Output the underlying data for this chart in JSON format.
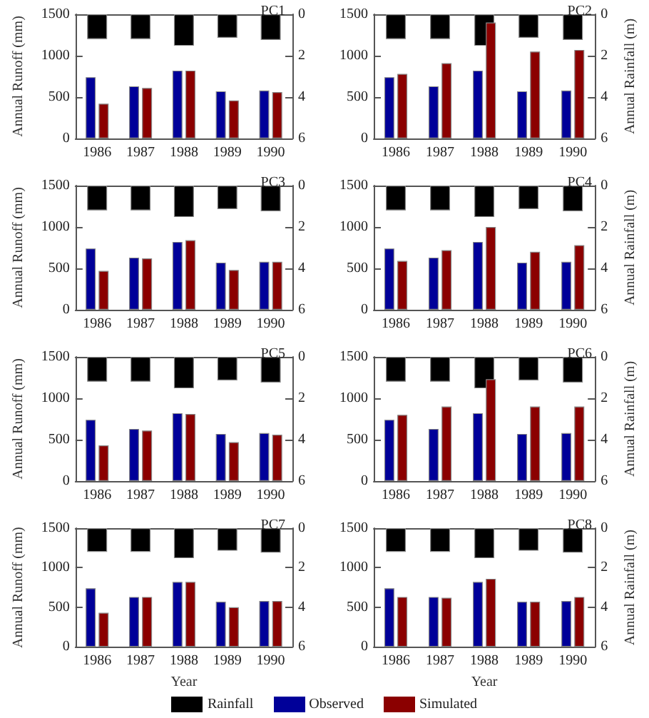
{
  "chart_data": [
    {
      "type": "bar",
      "title": "PC1",
      "ylabel": "Annual Runoff (mm)",
      "legend": "bottom",
      "categories": [
        "1986",
        "1987",
        "1988",
        "1989",
        "1990"
      ],
      "series": [
        {
          "name": "Rainfall",
          "color": "#000000",
          "axis": "y2",
          "values": [
            1.2,
            1.2,
            1.52,
            1.14,
            1.24
          ]
        },
        {
          "name": "Observed",
          "color": "#000099",
          "values": [
            740,
            630,
            820,
            570,
            580
          ]
        },
        {
          "name": "Simulated",
          "color": "#8b0000",
          "values": [
            420,
            610,
            820,
            460,
            560
          ]
        }
      ],
      "ylim": [
        0,
        1500
      ],
      "yticks": [
        0,
        500,
        1000,
        1500
      ],
      "y2lim": [
        6,
        0
      ],
      "y2ticks": [
        0,
        2,
        4,
        6
      ]
    },
    {
      "type": "bar",
      "title": "PC2",
      "y2label": "Annual Rainfall (m)",
      "categories": [
        "1986",
        "1987",
        "1988",
        "1989",
        "1990"
      ],
      "series": [
        {
          "color": "#000000",
          "axis": "y2",
          "values": [
            1.2,
            1.2,
            1.52,
            1.14,
            1.24
          ]
        },
        {
          "color": "#000099",
          "values": [
            740,
            630,
            820,
            570,
            580
          ]
        },
        {
          "color": "#8b0000",
          "values": [
            780,
            910,
            1400,
            1050,
            1070
          ]
        }
      ],
      "ylim": [
        0,
        1500
      ],
      "yticks": [
        0,
        500,
        1000,
        1500
      ],
      "y2lim": [
        6,
        0
      ],
      "y2ticks": [
        0,
        2,
        4,
        6
      ]
    },
    {
      "type": "bar",
      "title": "PC3",
      "ylabel": "Annual Runoff (mm)",
      "categories": [
        "1986",
        "1987",
        "1988",
        "1989",
        "1990"
      ],
      "series": [
        {
          "color": "#000000",
          "axis": "y2",
          "values": [
            1.2,
            1.2,
            1.52,
            1.14,
            1.24
          ]
        },
        {
          "color": "#000099",
          "values": [
            740,
            630,
            820,
            570,
            580
          ]
        },
        {
          "color": "#8b0000",
          "values": [
            470,
            620,
            840,
            480,
            580
          ]
        }
      ],
      "ylim": [
        0,
        1500
      ],
      "yticks": [
        0,
        500,
        1000,
        1500
      ],
      "y2lim": [
        6,
        0
      ],
      "y2ticks": [
        0,
        2,
        4,
        6
      ]
    },
    {
      "type": "bar",
      "title": "PC4",
      "y2label": "Annual Rainfall (m)",
      "categories": [
        "1986",
        "1987",
        "1988",
        "1989",
        "1990"
      ],
      "series": [
        {
          "color": "#000000",
          "axis": "y2",
          "values": [
            1.2,
            1.2,
            1.52,
            1.14,
            1.24
          ]
        },
        {
          "color": "#000099",
          "values": [
            740,
            630,
            820,
            570,
            580
          ]
        },
        {
          "color": "#8b0000",
          "values": [
            590,
            720,
            1000,
            700,
            780
          ]
        }
      ],
      "ylim": [
        0,
        1500
      ],
      "yticks": [
        0,
        500,
        1000,
        1500
      ],
      "y2lim": [
        6,
        0
      ],
      "y2ticks": [
        0,
        2,
        4,
        6
      ]
    },
    {
      "type": "bar",
      "title": "PC5",
      "ylabel": "Annual Runoff (mm)",
      "categories": [
        "1986",
        "1987",
        "1988",
        "1989",
        "1990"
      ],
      "series": [
        {
          "color": "#000000",
          "axis": "y2",
          "values": [
            1.2,
            1.2,
            1.52,
            1.14,
            1.24
          ]
        },
        {
          "color": "#000099",
          "values": [
            740,
            630,
            820,
            570,
            580
          ]
        },
        {
          "color": "#8b0000",
          "values": [
            430,
            610,
            810,
            470,
            560
          ]
        }
      ],
      "ylim": [
        0,
        1500
      ],
      "yticks": [
        0,
        500,
        1000,
        1500
      ],
      "y2lim": [
        6,
        0
      ],
      "y2ticks": [
        0,
        2,
        4,
        6
      ]
    },
    {
      "type": "bar",
      "title": "PC6",
      "y2label": "Annual Rainfall (m)",
      "categories": [
        "1986",
        "1987",
        "1988",
        "1989",
        "1990"
      ],
      "series": [
        {
          "color": "#000000",
          "axis": "y2",
          "values": [
            1.2,
            1.2,
            1.52,
            1.14,
            1.24
          ]
        },
        {
          "color": "#000099",
          "values": [
            740,
            630,
            820,
            570,
            580
          ]
        },
        {
          "color": "#8b0000",
          "values": [
            800,
            900,
            1230,
            900,
            900
          ]
        }
      ],
      "ylim": [
        0,
        1500
      ],
      "yticks": [
        0,
        500,
        1000,
        1500
      ],
      "y2lim": [
        6,
        0
      ],
      "y2ticks": [
        0,
        2,
        4,
        6
      ]
    },
    {
      "type": "bar",
      "title": "PC7",
      "ylabel": "Annual Runoff (mm)",
      "xlabel": "Year",
      "categories": [
        "1986",
        "1987",
        "1988",
        "1989",
        "1990"
      ],
      "series": [
        {
          "color": "#000000",
          "axis": "y2",
          "values": [
            1.2,
            1.2,
            1.52,
            1.14,
            1.24
          ]
        },
        {
          "color": "#000099",
          "values": [
            740,
            630,
            820,
            570,
            580
          ]
        },
        {
          "color": "#8b0000",
          "values": [
            430,
            630,
            820,
            500,
            580
          ]
        }
      ],
      "ylim": [
        0,
        1500
      ],
      "yticks": [
        0,
        500,
        1000,
        1500
      ],
      "y2lim": [
        6,
        0
      ],
      "y2ticks": [
        0,
        2,
        4,
        6
      ]
    },
    {
      "type": "bar",
      "title": "PC8",
      "y2label": "Annual Rainfall (m)",
      "xlabel": "Year",
      "categories": [
        "1986",
        "1987",
        "1988",
        "1989",
        "1990"
      ],
      "series": [
        {
          "color": "#000000",
          "axis": "y2",
          "values": [
            1.2,
            1.2,
            1.52,
            1.14,
            1.24
          ]
        },
        {
          "color": "#000099",
          "values": [
            740,
            630,
            820,
            570,
            580
          ]
        },
        {
          "color": "#8b0000",
          "values": [
            630,
            620,
            860,
            570,
            630
          ]
        }
      ],
      "ylim": [
        0,
        1500
      ],
      "yticks": [
        0,
        500,
        1000,
        1500
      ],
      "y2lim": [
        6,
        0
      ],
      "y2ticks": [
        0,
        2,
        4,
        6
      ]
    }
  ]
}
